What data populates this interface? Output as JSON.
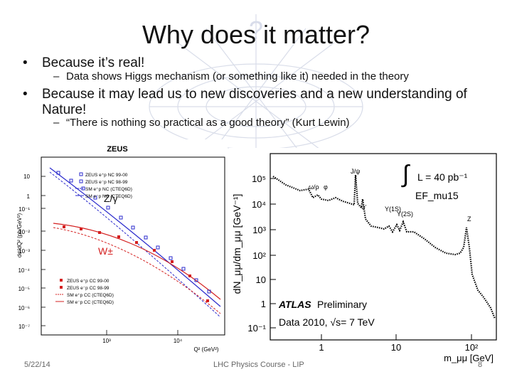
{
  "slide": {
    "title": "Why does it matter?",
    "bullet1": "Because it’s real!",
    "bullet1_sub": "Data shows Higgs mechanism (or something like it) needed in the theory",
    "bullet2_line1": "Because it may lead us to new discoveries and a new understanding of",
    "bullet2_line2": "Nature!",
    "bullet2_sub": "“There is nothing so practical as a good theory” (Kurt Lewin)",
    "bullet_glyph": "•",
    "dash_glyph": "–"
  },
  "left_plot": {
    "title": "ZEUS",
    "ylabel": "dσ/dQ² (pb/GeV²)",
    "xlabel": "Q² (GeV²)",
    "y_ticks": [
      "10",
      "1",
      "10⁻¹",
      "10⁻²",
      "10⁻³",
      "10⁻⁴",
      "10⁻⁵",
      "10⁻⁶",
      "10⁻⁷"
    ],
    "x_ticks": [
      "10³",
      "10⁴"
    ],
    "label_nc": "Z/γ",
    "label_cc": "W±",
    "legend_nc": [
      "ZEUS e⁺p NC 99-00",
      "ZEUS e⁻p NC 98-99",
      "SM e⁺p NC (CTEQ6D)",
      "SM e⁻p NC (CTEQ6D)"
    ],
    "legend_cc": [
      "ZEUS e⁺p CC 99-00",
      "ZEUS e⁻p CC 98-99",
      "SM e⁺p CC (CTEQ6D)",
      "SM e⁻p CC (CTEQ6D)"
    ],
    "colors": {
      "nc": "#2a2acc",
      "cc": "#d42020"
    }
  },
  "right_plot": {
    "ylabel": "dN_μμ/dm_μμ [GeV⁻¹]",
    "xlabel": "m_μμ [GeV]",
    "y_ticks": [
      "10⁵",
      "10⁴",
      "10³",
      "10²",
      "10",
      "1",
      "10⁻¹"
    ],
    "x_ticks": [
      "1",
      "10",
      "10²"
    ],
    "lumi": "L = 40 pb⁻¹",
    "trigger": "EF_mu15",
    "atlas": "ATLAS",
    "preliminary": "Preliminary",
    "data_label": "Data 2010, √s= 7 TeV",
    "peaks": [
      "J/ψ",
      "ω/ρ",
      "φ",
      "ψ'",
      "Υ(1S)",
      "Υ(2S)",
      "Z"
    ]
  },
  "footer": {
    "date": "5/22/14",
    "course": "LHC Physics Course - LIP",
    "page": "8"
  }
}
